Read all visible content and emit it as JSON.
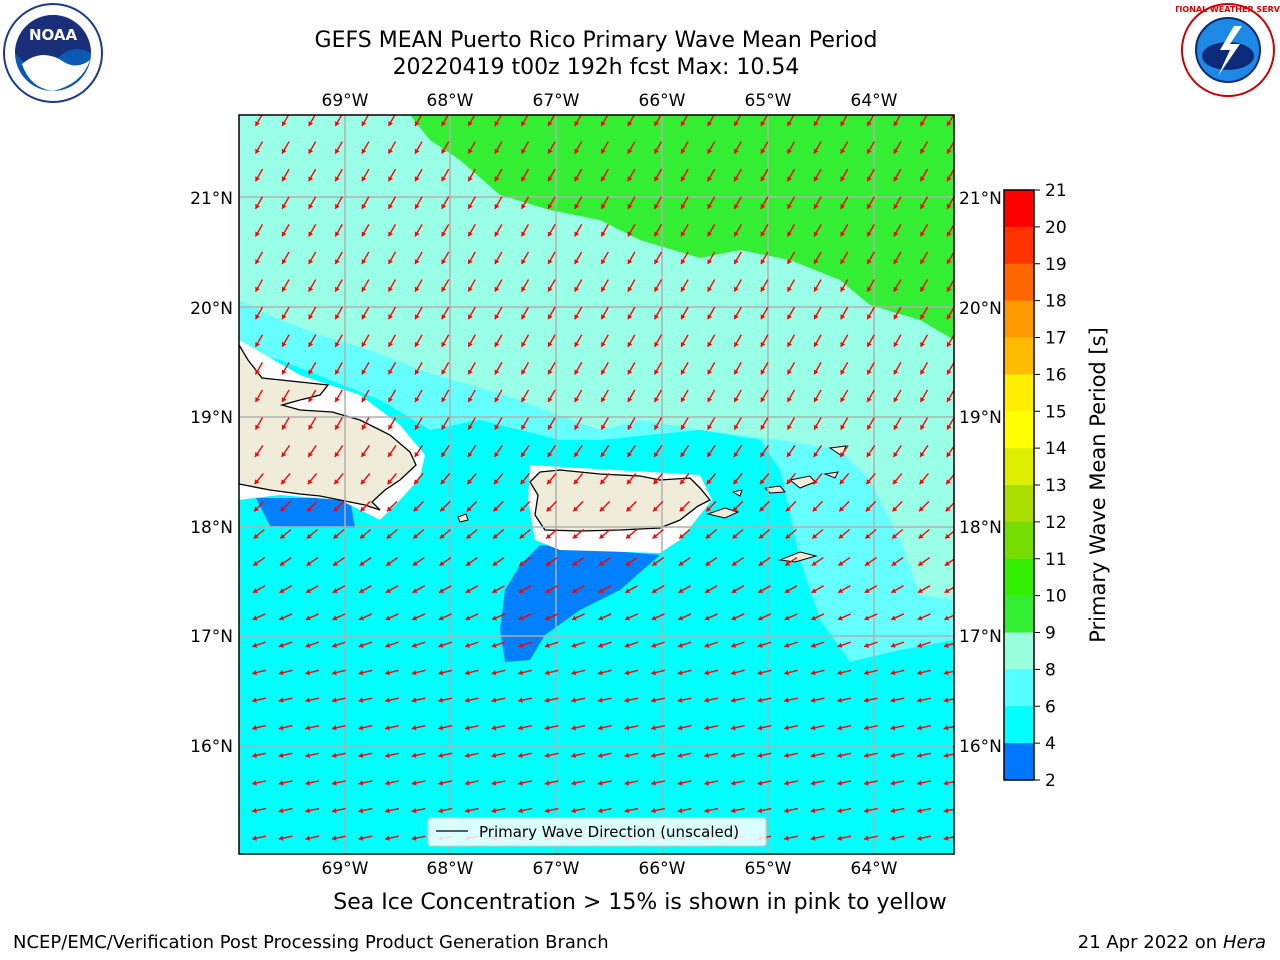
{
  "title_line1": "GEFS MEAN Puerto Rico Primary Wave Mean Period",
  "title_line2": "20220419 t00z 192h fcst   Max: 10.54",
  "lon_labels": [
    "69°W",
    "68°W",
    "67°W",
    "66°W",
    "65°W",
    "64°W"
  ],
  "lat_labels": [
    "21°N",
    "20°N",
    "19°N",
    "18°N",
    "17°N",
    "16°N"
  ],
  "legend_label": "Primary Wave Direction (unscaled)",
  "colorbar": {
    "label": "Primary Wave Mean Period [s]",
    "ticks": [
      "21",
      "20",
      "19",
      "18",
      "17",
      "16",
      "15",
      "14",
      "13",
      "12",
      "11",
      "10",
      "9",
      "8",
      "6",
      "4",
      "2"
    ],
    "colors": [
      "#ff0000",
      "#ff3300",
      "#ff6600",
      "#ff9900",
      "#ffbb00",
      "#ffee00",
      "#ffff00",
      "#ddee00",
      "#aadd00",
      "#77dd00",
      "#33ee00",
      "#33ee33",
      "#99ffdd",
      "#55ffff",
      "#00ffff",
      "#0077ff",
      "#0000ff"
    ]
  },
  "colors": {
    "arrow": "#ff0000",
    "land": "#efecda",
    "period_4_6": "#0080ff",
    "period_6_8": "#00ffff",
    "period_8_9": "#66ffff",
    "period_9_10": "#99ffe6",
    "period_10_11": "#33ee33"
  },
  "caption": "Sea Ice Concentration > 15% is shown in pink to yellow",
  "footer_left": "NCEP/EMC/Verification Post Processing Product Generation Branch",
  "footer_date": "21 Apr 2022 on ",
  "footer_host": "Hera",
  "logos": {
    "noaa": "NOAA",
    "nws": "NATIONAL WEATHER SERVICE"
  }
}
